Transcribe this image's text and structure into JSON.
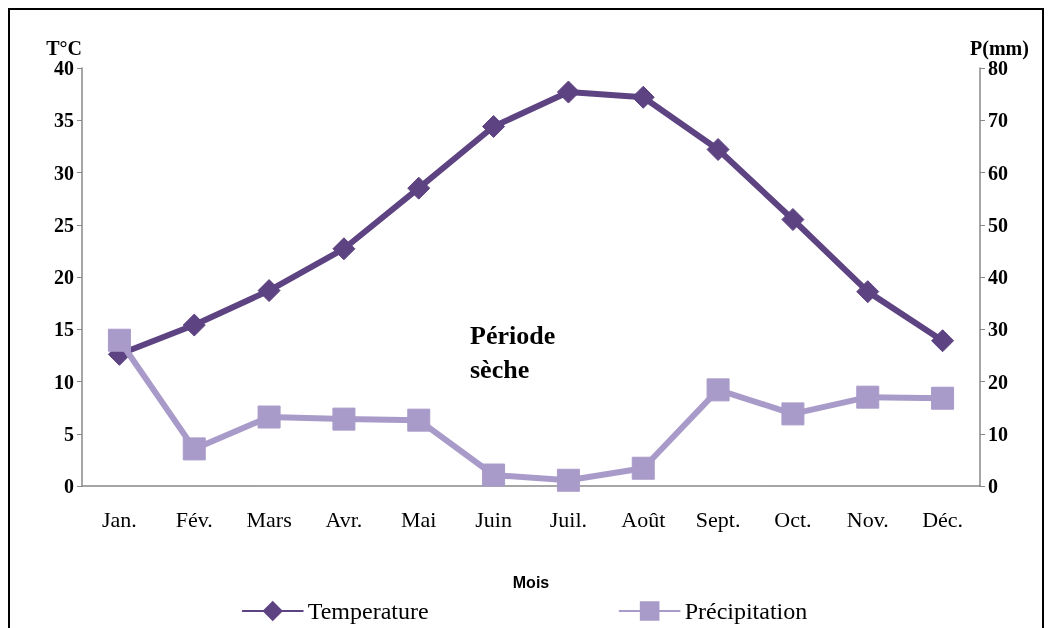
{
  "chart_data": {
    "type": "line",
    "categories": [
      "Jan.",
      "Fév.",
      "Mars",
      "Avr.",
      "Mai",
      "Juin",
      "Juil.",
      "Août",
      "Sept.",
      "Oct.",
      "Nov.",
      "Déc."
    ],
    "series": [
      {
        "name": "Temperature",
        "color": "#5e4382",
        "marker": "diamond",
        "values": [
          12.6,
          15.4,
          18.7,
          22.7,
          28.5,
          34.4,
          37.7,
          37.2,
          32.2,
          25.5,
          18.6,
          13.9
        ]
      },
      {
        "name": "Précipitation",
        "color": "#a99bc9",
        "marker": "square",
        "axis": "y2",
        "values": [
          27.9,
          7.1,
          13.2,
          12.8,
          12.6,
          2.1,
          1.1,
          3.4,
          18.4,
          13.8,
          17.0,
          16.8
        ]
      }
    ],
    "xlabel": "Mois",
    "ylabel": "T°C",
    "y2label": "P(mm)",
    "ylim": [
      0,
      40
    ],
    "yticks": [
      0,
      5,
      10,
      15,
      20,
      25,
      30,
      35,
      40
    ],
    "y2lim": [
      0,
      80
    ],
    "y2ticks": [
      0,
      10,
      20,
      30,
      40,
      50,
      60,
      70,
      80
    ],
    "annotations": [
      "Période sèche"
    ],
    "grid": false,
    "legend": "bottom",
    "line_style": "solid"
  }
}
